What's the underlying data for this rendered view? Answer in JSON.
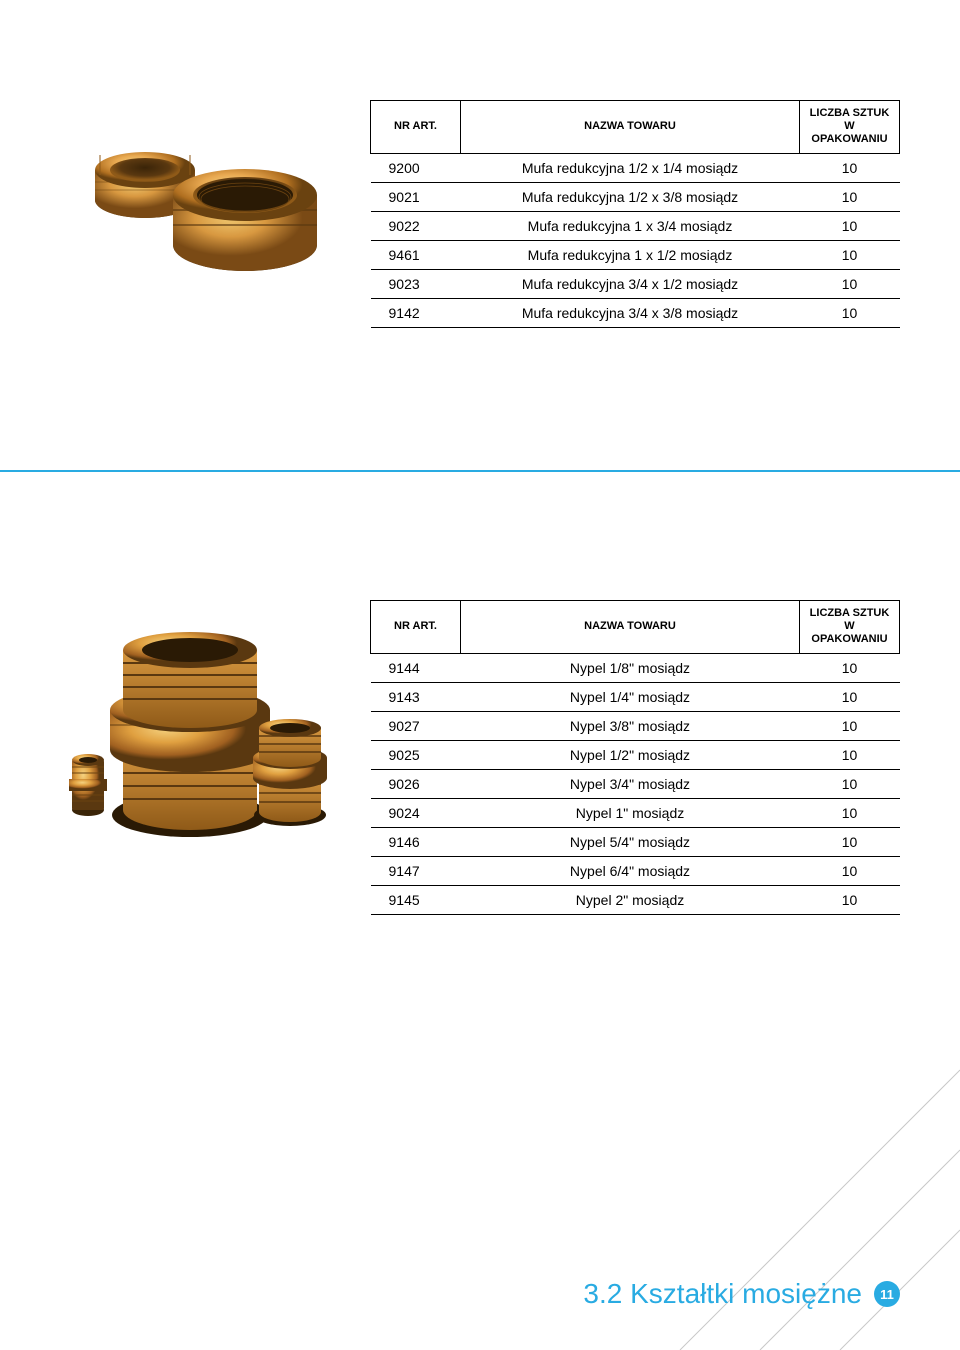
{
  "table1": {
    "headers": {
      "col1": "NR ART.",
      "col2": "NAZWA TOWARU",
      "col3_line1": "LICZBA SZTUK",
      "col3_line2": "W OPAKOWANIU"
    },
    "rows": [
      {
        "art": "9200",
        "name": "Mufa redukcyjna 1/2 x 1/4 mosiądz",
        "qty": "10"
      },
      {
        "art": "9021",
        "name": "Mufa redukcyjna 1/2 x 3/8 mosiądz",
        "qty": "10"
      },
      {
        "art": "9022",
        "name": "Mufa redukcyjna 1 x 3/4 mosiądz",
        "qty": "10"
      },
      {
        "art": "9461",
        "name": "Mufa redukcyjna 1 x 1/2 mosiądz",
        "qty": "10"
      },
      {
        "art": "9023",
        "name": "Mufa redukcyjna 3/4 x 1/2 mosiądz",
        "qty": "10"
      },
      {
        "art": "9142",
        "name": "Mufa redukcyjna 3/4 x 3/8 mosiądz",
        "qty": "10"
      }
    ]
  },
  "table2": {
    "headers": {
      "col1": "NR ART.",
      "col2": "NAZWA TOWARU",
      "col3_line1": "LICZBA SZTUK",
      "col3_line2": "W OPAKOWANIU"
    },
    "rows": [
      {
        "art": "9144",
        "name": "Nypel 1/8\" mosiądz",
        "qty": "10"
      },
      {
        "art": "9143",
        "name": "Nypel 1/4\" mosiądz",
        "qty": "10"
      },
      {
        "art": "9027",
        "name": "Nypel 3/8\" mosiądz",
        "qty": "10"
      },
      {
        "art": "9025",
        "name": "Nypel 1/2\" mosiądz",
        "qty": "10"
      },
      {
        "art": "9026",
        "name": "Nypel 3/4\" mosiądz",
        "qty": "10"
      },
      {
        "art": "9024",
        "name": "Nypel 1\" mosiądz",
        "qty": "10"
      },
      {
        "art": "9146",
        "name": "Nypel 5/4\" mosiądz",
        "qty": "10"
      },
      {
        "art": "9147",
        "name": "Nypel 6/4\" mosiądz",
        "qty": "10"
      },
      {
        "art": "9145",
        "name": "Nypel 2\" mosiądz",
        "qty": "10"
      }
    ]
  },
  "footer": {
    "title": "3.2 Kształtki mosiężne",
    "page": "11"
  },
  "colors": {
    "accent": "#29abe2",
    "brass_light": "#e8a850",
    "brass_mid": "#c98530",
    "brass_dark": "#8f5a18",
    "brass_shadow": "#5a3810"
  }
}
